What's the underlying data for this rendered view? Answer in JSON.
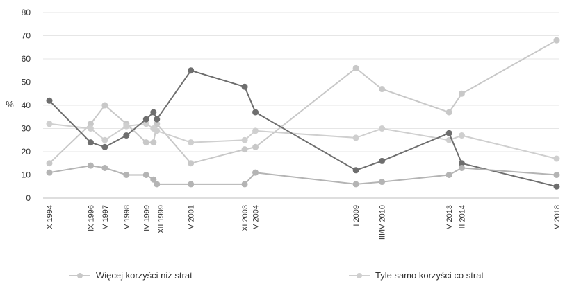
{
  "chart_data": {
    "type": "line",
    "ylabel": "%",
    "ylim": [
      0,
      80
    ],
    "yticks": [
      "0",
      "10",
      "20",
      "30",
      "40",
      "50",
      "60",
      "70",
      "80"
    ],
    "grid": "horizontal",
    "legend_position": "bottom",
    "categories": [
      "X 1994",
      "IX 1996",
      "V 1997",
      "V 1998",
      "IV 1999",
      "XII 1999",
      "V 2001",
      "XI 2003",
      "V 2004",
      "I 2009",
      "III/IV 2010",
      "V 2013",
      "II 2014",
      "V 2018"
    ],
    "category_times": [
      1994.79,
      1996.71,
      1997.37,
      1998.37,
      1999.29,
      1999.96,
      2001.37,
      2003.87,
      2004.37,
      2009.04,
      2010.25,
      2013.37,
      2013.96,
      2018.37
    ],
    "series": [
      {
        "name": "Więcej korzyści niż strat",
        "color": "#c8c8c8",
        "points": [
          [
            1994.79,
            15
          ],
          [
            1996.71,
            32
          ],
          [
            1997.37,
            40
          ],
          [
            1998.37,
            32
          ],
          [
            1999.29,
            24
          ],
          [
            1999.63,
            24
          ],
          [
            1999.79,
            32
          ],
          [
            2001.37,
            15
          ],
          [
            2003.87,
            21
          ],
          [
            2004.37,
            22
          ],
          [
            2009.04,
            56
          ],
          [
            2010.25,
            47
          ],
          [
            2013.37,
            37
          ],
          [
            2013.96,
            45
          ],
          [
            2018.37,
            68
          ]
        ]
      },
      {
        "name": "Tyle samo korzyści co strat",
        "color": "#cfcfcf",
        "points": [
          [
            1994.79,
            32
          ],
          [
            1996.71,
            30
          ],
          [
            1997.37,
            25
          ],
          [
            1998.37,
            31
          ],
          [
            1999.29,
            32
          ],
          [
            1999.63,
            30
          ],
          [
            1999.79,
            29
          ],
          [
            2001.37,
            24
          ],
          [
            2003.87,
            25
          ],
          [
            2004.37,
            29
          ],
          [
            2009.04,
            26
          ],
          [
            2010.25,
            30
          ],
          [
            2013.37,
            25
          ],
          [
            2013.96,
            27
          ],
          [
            2018.37,
            17
          ]
        ]
      },
      {
        "name": "",
        "color": "#6e6e6e",
        "points": [
          [
            1994.79,
            42
          ],
          [
            1996.71,
            24
          ],
          [
            1997.37,
            22
          ],
          [
            1998.37,
            27
          ],
          [
            1999.29,
            34
          ],
          [
            1999.63,
            37
          ],
          [
            1999.79,
            34
          ],
          [
            2001.37,
            55
          ],
          [
            2003.87,
            48
          ],
          [
            2004.37,
            37
          ],
          [
            2009.04,
            12
          ],
          [
            2010.25,
            16
          ],
          [
            2013.37,
            28
          ],
          [
            2013.96,
            15
          ],
          [
            2018.37,
            5
          ]
        ]
      },
      {
        "name": "",
        "color": "#b4b4b4",
        "points": [
          [
            1994.79,
            11
          ],
          [
            1996.71,
            14
          ],
          [
            1997.37,
            13
          ],
          [
            1998.37,
            10
          ],
          [
            1999.29,
            10
          ],
          [
            1999.63,
            8
          ],
          [
            1999.79,
            6
          ],
          [
            2001.37,
            6
          ],
          [
            2003.87,
            6
          ],
          [
            2004.37,
            11
          ],
          [
            2009.04,
            6
          ],
          [
            2010.25,
            7
          ],
          [
            2013.37,
            10
          ],
          [
            2013.96,
            13
          ],
          [
            2018.37,
            10
          ]
        ]
      }
    ]
  },
  "legend": [
    {
      "label": "Więcej korzyści niż strat",
      "color": "#c8c8c8"
    },
    {
      "label": "Tyle samo korzyści co strat",
      "color": "#cfcfcf"
    }
  ]
}
